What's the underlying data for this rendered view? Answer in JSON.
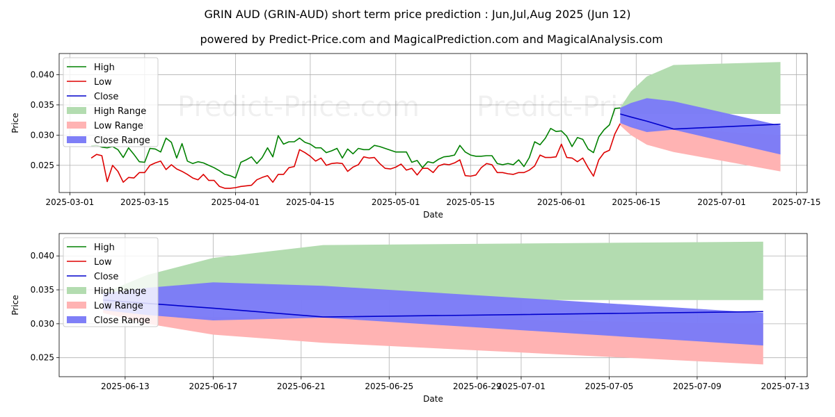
{
  "title": "GRIN AUD (GRIN-AUD) short term price prediction : Jun,Jul,Aug 2025 (Jun 12)",
  "subtitle": "powered by Predict-Price.com and MagicalPrediction.com and MagicalAnalysis.com",
  "watermark": "Predict-Price.com",
  "colors": {
    "high": "#008000",
    "low": "#dd0000",
    "close": "#0000cc",
    "high_range": "#b3dcb0",
    "low_range": "#ffb3b3",
    "close_range": "#7b7bf7"
  },
  "chart_data": [
    {
      "type": "line",
      "name": "history",
      "xlabel": "Date",
      "ylabel": "Price",
      "xlim": [
        "2025-02-27",
        "2025-07-17"
      ],
      "ylim": [
        0.0205,
        0.0435
      ],
      "xticks": [
        "2025-03-01",
        "2025-03-15",
        "2025-04-01",
        "2025-04-15",
        "2025-05-01",
        "2025-05-15",
        "2025-06-01",
        "2025-06-15",
        "2025-07-01",
        "2025-07-15"
      ],
      "yticks": [
        "0.025",
        "0.030",
        "0.035",
        "0.040"
      ],
      "legend": [
        "High",
        "Low",
        "Close",
        "High Range",
        "Low Range",
        "Close Range"
      ],
      "legend_position": "top-left",
      "series": [
        {
          "name": "High",
          "start": "2025-03-05",
          "values": [
            0.0282,
            0.0283,
            0.028,
            0.0279,
            0.0281,
            0.0276,
            0.0263,
            0.0279,
            0.0268,
            0.0256,
            0.0255,
            0.0278,
            0.0277,
            0.0272,
            0.0295,
            0.0288,
            0.0262,
            0.0286,
            0.0257,
            0.0253,
            0.0256,
            0.0254,
            0.025,
            0.0246,
            0.0241,
            0.0235,
            0.0233,
            0.0229,
            0.0255,
            0.0259,
            0.0264,
            0.0253,
            0.0263,
            0.0279,
            0.0264,
            0.0299,
            0.0285,
            0.0289,
            0.0289,
            0.0295,
            0.0288,
            0.0285,
            0.0279,
            0.0279,
            0.0271,
            0.0274,
            0.0278,
            0.0262,
            0.0277,
            0.0269,
            0.0278,
            0.0276,
            0.0276,
            0.0283,
            0.0281,
            0.0278,
            0.0275,
            0.0272,
            0.0272,
            0.0272,
            0.0255,
            0.0258,
            0.0246,
            0.0256,
            0.0254,
            0.026,
            0.0264,
            0.0265,
            0.0267,
            0.0283,
            0.0272,
            0.0267,
            0.0265,
            0.0265,
            0.0266,
            0.0266,
            0.0253,
            0.0251,
            0.0253,
            0.0251,
            0.0259,
            0.0248,
            0.0263,
            0.0289,
            0.0284,
            0.0295,
            0.0311,
            0.0306,
            0.0307,
            0.0298,
            0.0281,
            0.0296,
            0.0293,
            0.0277,
            0.0271,
            0.0297,
            0.0309,
            0.0317,
            0.0344,
            0.0345
          ]
        },
        {
          "name": "Low",
          "start": "2025-03-05",
          "values": [
            0.0262,
            0.0268,
            0.0266,
            0.0223,
            0.025,
            0.024,
            0.0222,
            0.023,
            0.0229,
            0.0238,
            0.0238,
            0.025,
            0.0254,
            0.0257,
            0.0243,
            0.0251,
            0.0244,
            0.024,
            0.0235,
            0.0229,
            0.0226,
            0.0235,
            0.0225,
            0.0225,
            0.0215,
            0.0212,
            0.0212,
            0.0213,
            0.0215,
            0.0216,
            0.0217,
            0.0226,
            0.023,
            0.0233,
            0.0222,
            0.0235,
            0.0235,
            0.0246,
            0.0248,
            0.0276,
            0.0271,
            0.0265,
            0.0257,
            0.0262,
            0.025,
            0.0253,
            0.0254,
            0.0253,
            0.024,
            0.0247,
            0.0251,
            0.0264,
            0.0262,
            0.0263,
            0.0253,
            0.0245,
            0.0244,
            0.0247,
            0.0252,
            0.0242,
            0.0245,
            0.0234,
            0.0245,
            0.0245,
            0.0238,
            0.0249,
            0.0252,
            0.0251,
            0.0254,
            0.0259,
            0.0233,
            0.0232,
            0.0234,
            0.0246,
            0.0253,
            0.0251,
            0.0238,
            0.0238,
            0.0236,
            0.0235,
            0.0238,
            0.0238,
            0.0242,
            0.0249,
            0.0267,
            0.0263,
            0.0263,
            0.0264,
            0.0285,
            0.0263,
            0.0262,
            0.0256,
            0.0262,
            0.0246,
            0.0232,
            0.0259,
            0.0271,
            0.0275,
            0.0302,
            0.0319
          ]
        },
        {
          "name": "Close",
          "x": [
            "2025-06-12",
            "2025-06-14",
            "2025-06-17",
            "2025-06-22",
            "2025-07-12"
          ],
          "values": [
            0.0335,
            0.033,
            0.0323,
            0.031,
            0.0318
          ]
        }
      ],
      "ranges": [
        {
          "name": "High Range",
          "x": [
            "2025-06-12",
            "2025-06-14",
            "2025-06-17",
            "2025-06-22",
            "2025-07-12"
          ],
          "upper": [
            0.0345,
            0.0372,
            0.0397,
            0.0416,
            0.0421
          ],
          "lower": [
            0.0335,
            0.0335,
            0.0335,
            0.0335,
            0.0335
          ]
        },
        {
          "name": "Low Range",
          "x": [
            "2025-06-12",
            "2025-06-14",
            "2025-06-17",
            "2025-06-22",
            "2025-07-12"
          ],
          "upper": [
            0.032,
            0.0315,
            0.031,
            0.031,
            0.03
          ],
          "lower": [
            0.0316,
            0.03,
            0.0284,
            0.0272,
            0.024
          ]
        },
        {
          "name": "Close Range",
          "x": [
            "2025-06-12",
            "2025-06-14",
            "2025-06-17",
            "2025-06-22",
            "2025-07-12"
          ],
          "upper": [
            0.0345,
            0.0353,
            0.0361,
            0.0356,
            0.0316
          ],
          "lower": [
            0.032,
            0.0313,
            0.0305,
            0.0309,
            0.0268
          ]
        }
      ]
    },
    {
      "type": "line",
      "name": "forecast",
      "xlabel": "Date",
      "ylabel": "Price",
      "xlim": [
        "2025-06-10",
        "2025-07-14"
      ],
      "ylim": [
        0.0222,
        0.0433
      ],
      "xticks": [
        "2025-06-13",
        "2025-06-17",
        "2025-06-21",
        "2025-06-25",
        "2025-06-29",
        "2025-07-01",
        "2025-07-05",
        "2025-07-09",
        "2025-07-13"
      ],
      "yticks": [
        "0.025",
        "0.030",
        "0.035",
        "0.040"
      ],
      "legend": [
        "High",
        "Low",
        "Close",
        "High Range",
        "Low Range",
        "Close Range"
      ],
      "legend_position": "top-left",
      "series": [
        {
          "name": "Close",
          "x": [
            "2025-06-12",
            "2025-06-14",
            "2025-06-17",
            "2025-06-22",
            "2025-07-12"
          ],
          "values": [
            0.0335,
            0.033,
            0.0323,
            0.031,
            0.0318
          ]
        }
      ],
      "ranges": [
        {
          "name": "High Range",
          "x": [
            "2025-06-12",
            "2025-06-14",
            "2025-06-17",
            "2025-06-22",
            "2025-07-12"
          ],
          "upper": [
            0.0345,
            0.0372,
            0.0397,
            0.0416,
            0.0421
          ],
          "lower": [
            0.0335,
            0.0335,
            0.0335,
            0.0335,
            0.0335
          ]
        },
        {
          "name": "Low Range",
          "x": [
            "2025-06-12",
            "2025-06-14",
            "2025-06-17",
            "2025-06-22",
            "2025-07-12"
          ],
          "upper": [
            0.032,
            0.0315,
            0.031,
            0.031,
            0.03
          ],
          "lower": [
            0.0316,
            0.03,
            0.0284,
            0.0272,
            0.024
          ]
        },
        {
          "name": "Close Range",
          "x": [
            "2025-06-12",
            "2025-06-14",
            "2025-06-17",
            "2025-06-22",
            "2025-07-12"
          ],
          "upper": [
            0.0345,
            0.0353,
            0.0361,
            0.0356,
            0.0316
          ],
          "lower": [
            0.032,
            0.0313,
            0.0305,
            0.0309,
            0.0268
          ]
        }
      ]
    }
  ]
}
